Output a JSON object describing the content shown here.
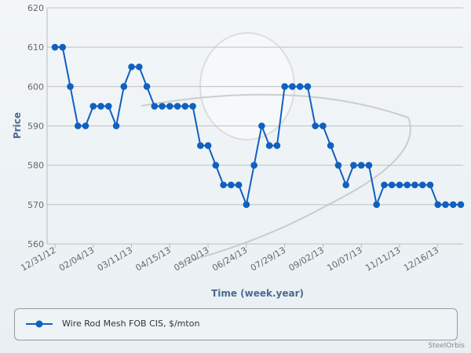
{
  "chart_data": {
    "type": "line",
    "title": "",
    "xlabel": "Time (week.year)",
    "ylabel": "Price",
    "ylim": [
      560,
      620
    ],
    "yticks": [
      560,
      570,
      580,
      590,
      600,
      610,
      620
    ],
    "x_start": "12/31/12",
    "x_interval": "weekly",
    "xtick_labels": [
      "12/31/12",
      "02/04/13",
      "03/11/13",
      "04/15/13",
      "05/20/13",
      "06/24/13",
      "07/29/13",
      "09/02/13",
      "10/07/13",
      "11/11/13",
      "12/16/13"
    ],
    "xtick_every": 5,
    "grid": true,
    "legend_position": "bottom",
    "series": [
      {
        "name": "Wire Rod Mesh FOB CIS, $/mton",
        "color": "#1060c0",
        "values": [
          610,
          610,
          600,
          590,
          590,
          595,
          595,
          595,
          590,
          600,
          605,
          605,
          600,
          595,
          595,
          595,
          595,
          595,
          595,
          585,
          585,
          580,
          575,
          575,
          575,
          570,
          580,
          590,
          585,
          585,
          600,
          600,
          600,
          600,
          590,
          590,
          585,
          580,
          575,
          580,
          580,
          580,
          570,
          575,
          575,
          575,
          575,
          575,
          575,
          575,
          570,
          570,
          570,
          570
        ]
      }
    ]
  },
  "credit": "SteelOrbis"
}
